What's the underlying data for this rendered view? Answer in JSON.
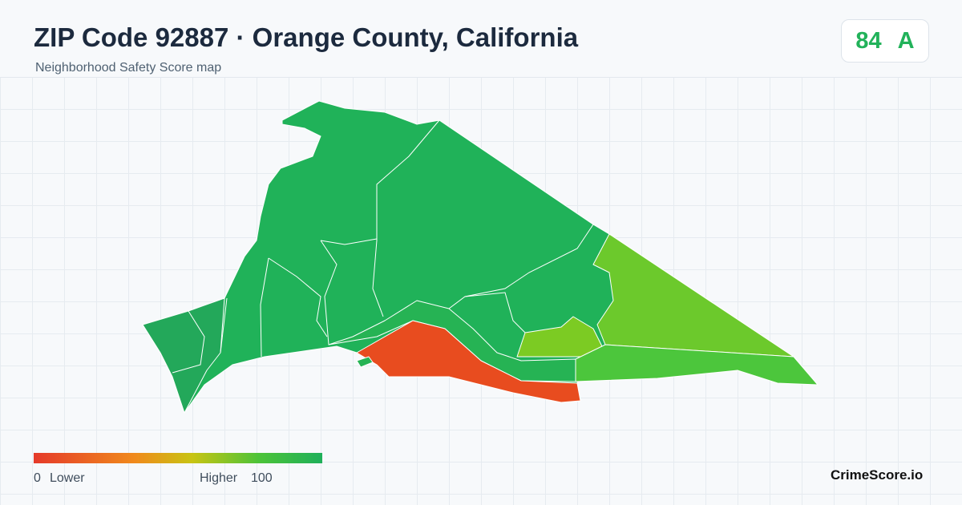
{
  "title": "ZIP Code 92887 · Orange County, California",
  "subtitle": "Neighborhood Safety Score map",
  "score": {
    "value": "84",
    "grade": "A"
  },
  "legend": {
    "min": "0",
    "min_label": "Lower",
    "max_label": "Higher",
    "max": "100"
  },
  "brand": "CrimeScore.io"
}
